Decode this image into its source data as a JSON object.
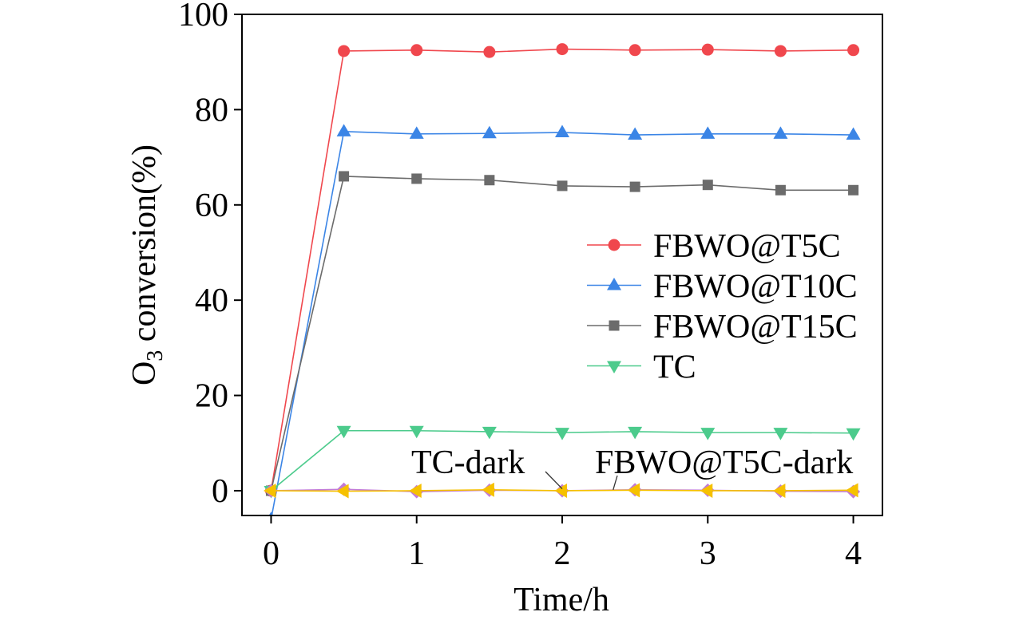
{
  "chart_data": {
    "type": "line",
    "title": "",
    "xlabel": "Time/h",
    "ylabel": {
      "base": "O",
      "sub": "3",
      "rest": " conversion(%)"
    },
    "xlim": [
      -0.2,
      4.2
    ],
    "ylim": [
      -5.2,
      100
    ],
    "xticks": [
      0,
      1,
      2,
      3,
      4
    ],
    "yticks": [
      0,
      20,
      40,
      60,
      80,
      100
    ],
    "grid": false,
    "legend_position": "center-right",
    "x": [
      0,
      0.5,
      1,
      1.5,
      2,
      2.5,
      3,
      3.5,
      4
    ],
    "series": [
      {
        "name": "FBWO@T5C",
        "color": "#f0474d",
        "marker": "circle",
        "in_legend": true,
        "values": [
          0,
          92.3,
          92.5,
          92.1,
          92.7,
          92.5,
          92.6,
          92.3,
          92.5
        ]
      },
      {
        "name": "FBWO@T10C",
        "color": "#3b85e6",
        "marker": "triangle-up",
        "in_legend": true,
        "values": [
          -6,
          75.4,
          74.9,
          75.0,
          75.2,
          74.7,
          74.9,
          74.9,
          74.7
        ]
      },
      {
        "name": "FBWO@T15C",
        "color": "#6b6b6b",
        "marker": "square",
        "in_legend": true,
        "values": [
          0,
          66.0,
          65.5,
          65.2,
          64.0,
          63.8,
          64.2,
          63.1,
          63.1
        ]
      },
      {
        "name": "TC",
        "color": "#4ccb8c",
        "marker": "triangle-down",
        "in_legend": true,
        "values": [
          0,
          12.6,
          12.6,
          12.4,
          12.2,
          12.4,
          12.2,
          12.2,
          12.1
        ]
      },
      {
        "name": "TC-dark",
        "color": "#c27bd6",
        "marker": "diamond",
        "in_legend": false,
        "values": [
          0,
          0.3,
          -0.2,
          0.1,
          0,
          0.2,
          0.1,
          -0.1,
          -0.2
        ]
      },
      {
        "name": "FBWO@T5C-dark",
        "color": "#f6c100",
        "marker": "triangle-left",
        "in_legend": false,
        "values": [
          0,
          -0.1,
          0,
          0.2,
          0,
          0.1,
          0,
          0,
          0.1
        ]
      }
    ],
    "annotations": [
      {
        "label_series": 4,
        "target": [
          2.0,
          0.4
        ]
      },
      {
        "label_series": 5,
        "target": [
          2.35,
          0.2
        ]
      }
    ]
  }
}
